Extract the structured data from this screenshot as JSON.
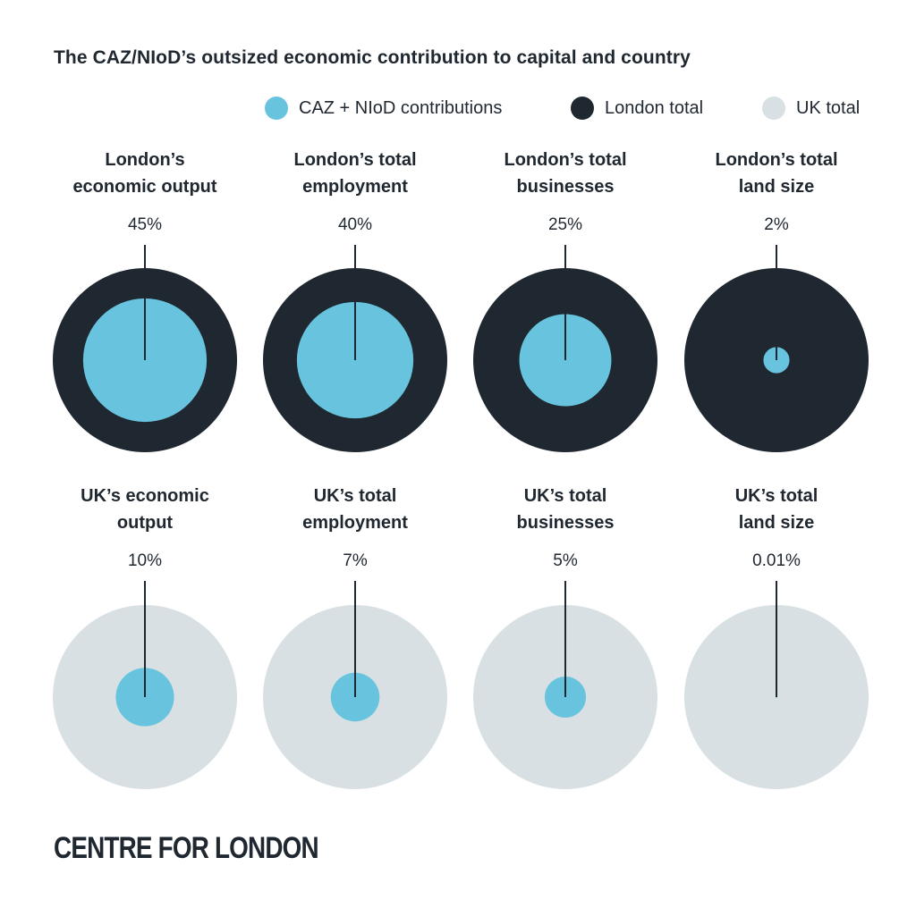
{
  "title": "The CAZ/NIoD’s outsized economic contribution to capital and country",
  "legend": [
    {
      "label": "CAZ + NIoD contributions",
      "color": "#68c4de"
    },
    {
      "label": "London total",
      "color": "#1f2730"
    },
    {
      "label": "UK total",
      "color": "#d8e0e3"
    }
  ],
  "footer": {
    "logo": "CENTRE FOR LONDON"
  },
  "chart_data": {
    "type": "proportional-area circles",
    "colors": {
      "contribution": "#68c4de",
      "london": "#1f2730",
      "uk": "#d8e0e3"
    },
    "panels": [
      {
        "row": "London",
        "label_line1": "London’s",
        "label_line2": "economic output",
        "value": 45,
        "value_label": "45%"
      },
      {
        "row": "London",
        "label_line1": "London’s total",
        "label_line2": "employment",
        "value": 40,
        "value_label": "40%"
      },
      {
        "row": "London",
        "label_line1": "London’s total",
        "label_line2": "businesses",
        "value": 25,
        "value_label": "25%"
      },
      {
        "row": "London",
        "label_line1": "London’s total",
        "label_line2": "land size",
        "value": 2,
        "value_label": "2%"
      },
      {
        "row": "UK",
        "label_line1": "UK’s economic",
        "label_line2": "output",
        "value": 10,
        "value_label": "10%"
      },
      {
        "row": "UK",
        "label_line1": "UK’s total",
        "label_line2": "employment",
        "value": 7,
        "value_label": "7%"
      },
      {
        "row": "UK",
        "label_line1": "UK’s total",
        "label_line2": "businesses",
        "value": 5,
        "value_label": "5%"
      },
      {
        "row": "UK",
        "label_line1": "UK’s total",
        "label_line2": "land size",
        "value": 0.01,
        "value_label": "0.01%"
      }
    ]
  }
}
